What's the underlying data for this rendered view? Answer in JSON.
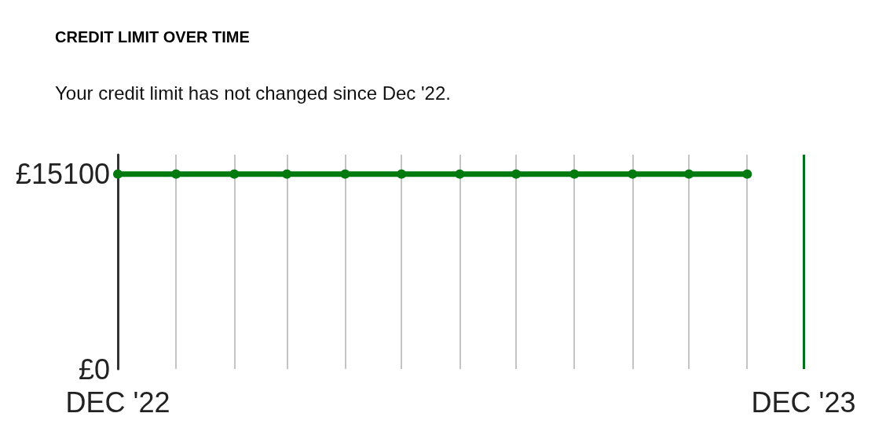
{
  "chart_data": {
    "type": "line",
    "title": "CREDIT LIMIT OVER TIME",
    "subtitle": "Your credit limit has not changed since Dec '22.",
    "x": [
      "2022-12",
      "2023-01",
      "2023-02",
      "2023-03",
      "2023-04",
      "2023-05",
      "2023-06",
      "2023-07",
      "2023-08",
      "2023-09",
      "2023-10",
      "2023-11"
    ],
    "values": [
      15100,
      15100,
      15100,
      15100,
      15100,
      15100,
      15100,
      15100,
      15100,
      15100,
      15100,
      15100
    ],
    "color": "#007a0e",
    "marker": "circle",
    "xlim": [
      "2022-12",
      "2023-12"
    ],
    "xticks": [
      {
        "value": "2022-12",
        "label": "DEC '22"
      },
      {
        "value": "2023-01",
        "label": null
      },
      {
        "value": "2023-02",
        "label": null
      },
      {
        "value": "2023-03",
        "label": null
      },
      {
        "value": "2023-04",
        "label": null
      },
      {
        "value": "2023-05",
        "label": null
      },
      {
        "value": "2023-06",
        "label": null
      },
      {
        "value": "2023-07",
        "label": null
      },
      {
        "value": "2023-08",
        "label": null
      },
      {
        "value": "2023-09",
        "label": null
      },
      {
        "value": "2023-10",
        "label": null
      },
      {
        "value": "2023-11",
        "label": null
      },
      {
        "value": "2023-12",
        "label": "DEC '23"
      }
    ],
    "ylim": [
      0,
      16600
    ],
    "yticks": [
      {
        "value": 0,
        "label": "£0"
      },
      {
        "value": 15100,
        "label": "£15100"
      }
    ],
    "grid": "x",
    "ref_lines": [
      {
        "axis": "x",
        "value": "2023-12",
        "color": "#00701a"
      }
    ]
  }
}
